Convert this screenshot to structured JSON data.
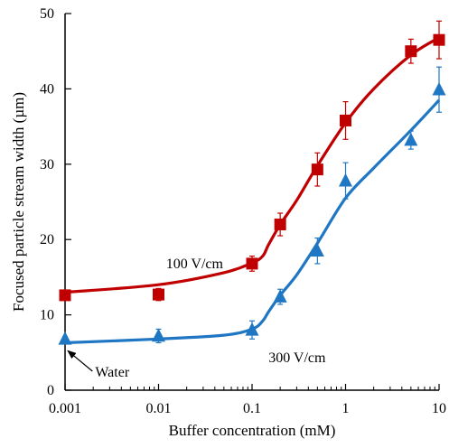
{
  "chart_data": {
    "type": "scatter",
    "xlabel": "Buffer concentration (mM)",
    "ylabel": "Focused particle stream width (µm)",
    "xscale": "log",
    "xlim": [
      0.001,
      10
    ],
    "ylim": [
      0,
      50
    ],
    "xticks": [
      0.001,
      0.01,
      0.1,
      1,
      10
    ],
    "xtick_labels": [
      "0.001",
      "0.01",
      "0.1",
      "1",
      "10"
    ],
    "yticks": [
      0,
      10,
      20,
      30,
      40,
      50
    ],
    "ytick_labels": [
      "0",
      "10",
      "20",
      "30",
      "40",
      "50"
    ],
    "grid": false,
    "series": [
      {
        "name": "100 V/cm",
        "marker": "square",
        "color": "#c00000",
        "x": [
          0.001,
          0.01,
          0.1,
          0.2,
          0.5,
          1,
          5,
          10
        ],
        "y": [
          12.6,
          12.7,
          16.8,
          22.0,
          29.3,
          35.8,
          45.0,
          46.5
        ],
        "err": [
          0.6,
          0.8,
          1.0,
          1.5,
          2.2,
          2.5,
          1.6,
          2.5
        ],
        "fit_x": [
          0.001,
          0.01,
          0.05,
          0.1,
          0.13,
          0.15,
          0.2,
          0.3,
          0.5,
          1,
          2,
          5,
          10
        ],
        "fit_y": [
          13.0,
          14.0,
          15.6,
          16.9,
          17.8,
          19.3,
          22.0,
          25.2,
          29.8,
          35.5,
          40.0,
          44.5,
          46.8
        ]
      },
      {
        "name": "300 V/cm",
        "marker": "triangle",
        "color": "#1f77c4",
        "x": [
          0.001,
          0.01,
          0.1,
          0.2,
          0.5,
          1,
          5,
          10
        ],
        "y": [
          6.8,
          7.2,
          8.0,
          12.4,
          18.5,
          27.8,
          33.2,
          39.9
        ],
        "err": [
          0.3,
          0.9,
          1.2,
          1.0,
          1.7,
          2.4,
          1.2,
          3.0
        ],
        "fit_x": [
          0.001,
          0.01,
          0.05,
          0.1,
          0.13,
          0.15,
          0.2,
          0.3,
          0.5,
          1,
          2,
          5,
          10
        ],
        "fit_y": [
          6.3,
          6.8,
          7.3,
          8.1,
          9.2,
          10.4,
          12.6,
          15.3,
          19.5,
          25.5,
          29.5,
          34.5,
          38.5
        ]
      }
    ],
    "annotations": [
      {
        "text": "100 V/cm",
        "x": 0.012,
        "y": 16.2
      },
      {
        "text": "300 V/cm",
        "x": 0.15,
        "y": 3.7
      },
      {
        "text": "Water",
        "x": 0.0021,
        "y": 1.8,
        "arrow_to_x": 0.001,
        "arrow_to_y": 5.6
      }
    ]
  }
}
